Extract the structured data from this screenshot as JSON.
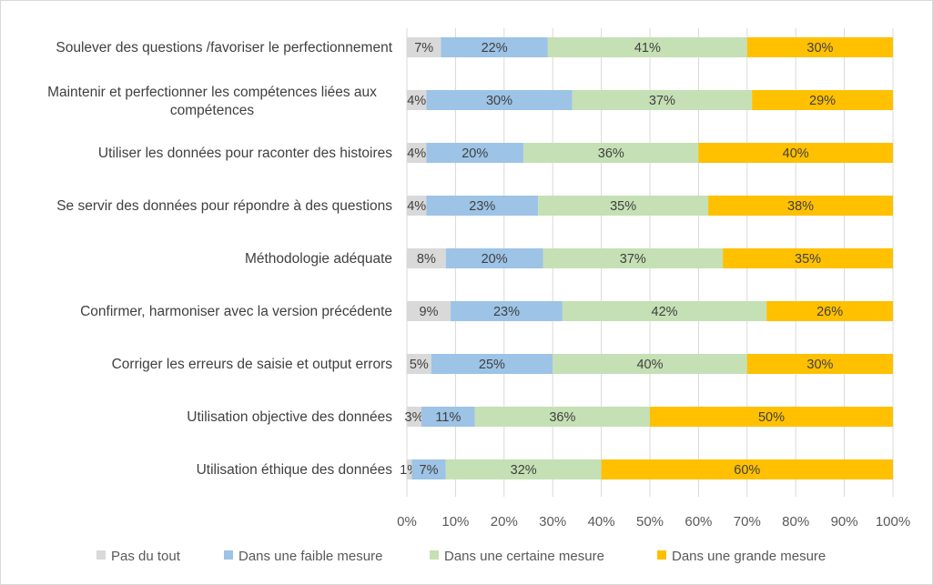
{
  "chart_data": {
    "type": "bar",
    "orientation": "horizontal",
    "stacked": "percent",
    "categories": [
      [
        "Soulever des questions /favoriser le perfectionnement"
      ],
      [
        "Maintenir et perfectionner les compétences liées aux",
        "compétences"
      ],
      [
        "Utiliser les données pour raconter des histoires"
      ],
      [
        "Se servir des données pour répondre à des questions"
      ],
      [
        "Méthodologie adéquate"
      ],
      [
        "Confirmer, harmoniser avec la version précédente"
      ],
      [
        "Corriger les erreurs de saisie et output errors"
      ],
      [
        "Utilisation objective des données"
      ],
      [
        "Utilisation éthique des données"
      ]
    ],
    "series": [
      {
        "name": "Pas du tout",
        "color": "#d9d9d9",
        "values": [
          7,
          4,
          4,
          4,
          8,
          9,
          5,
          3,
          1
        ]
      },
      {
        "name": "Dans une faible mesure",
        "color": "#9dc3e6",
        "values": [
          22,
          30,
          20,
          23,
          20,
          23,
          25,
          11,
          7
        ]
      },
      {
        "name": "Dans une certaine mesure",
        "color": "#c5e0b4",
        "values": [
          41,
          37,
          36,
          35,
          37,
          42,
          40,
          36,
          32
        ]
      },
      {
        "name": "Dans une grande mesure",
        "color": "#ffc000",
        "values": [
          30,
          29,
          40,
          38,
          35,
          26,
          30,
          50,
          60
        ]
      }
    ],
    "xlim": [
      0,
      100
    ],
    "xticks": [
      "0%",
      "10%",
      "20%",
      "30%",
      "40%",
      "50%",
      "60%",
      "70%",
      "80%",
      "90%",
      "100%"
    ],
    "data_label_suffix": "%",
    "grid": "vertical",
    "legend": "bottom"
  }
}
